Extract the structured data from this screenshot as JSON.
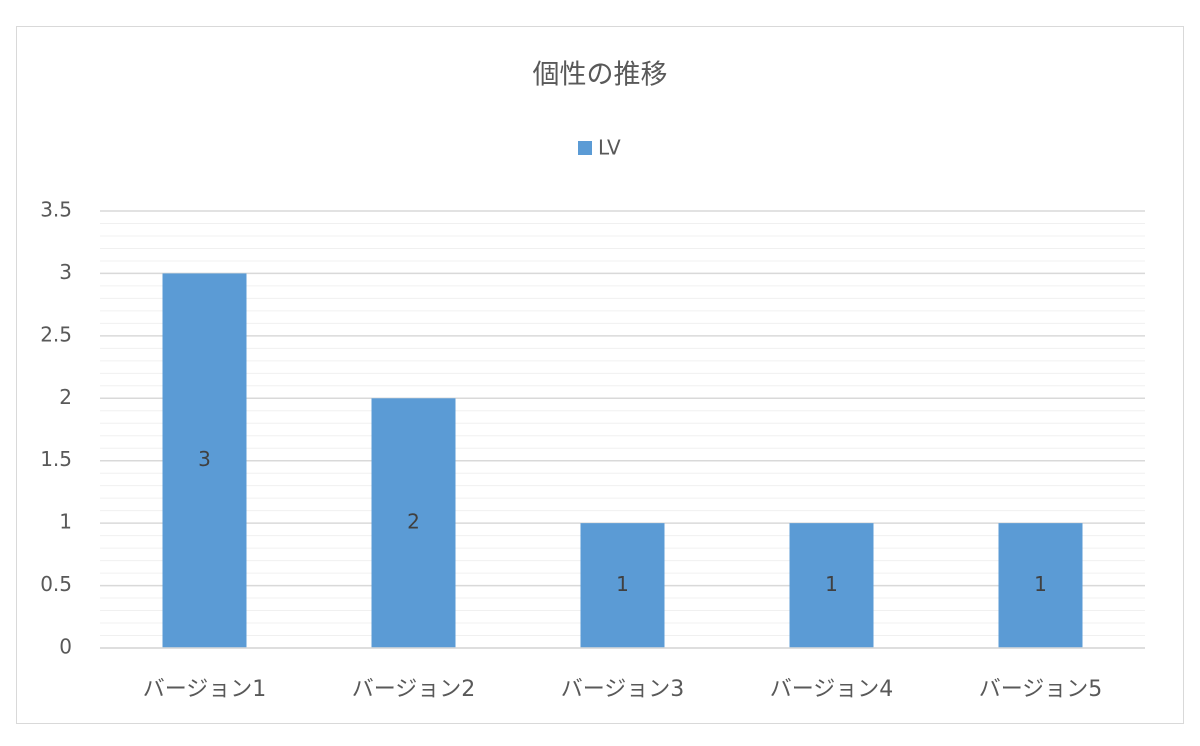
{
  "chart_data": {
    "type": "bar",
    "title": "個性の推移",
    "categories": [
      "バージョン1",
      "バージョン2",
      "バージョン3",
      "バージョン4",
      "バージョン5"
    ],
    "series": [
      {
        "name": "LV",
        "color": "#5b9bd5",
        "values": [
          3,
          2,
          1,
          1,
          1
        ]
      }
    ],
    "ylim": [
      0,
      3.5
    ],
    "yticks": [
      0,
      0.5,
      1,
      1.5,
      2,
      2.5,
      3,
      3.5
    ],
    "grid": true,
    "minor_grid": true,
    "legend": "top",
    "data_labels": true
  }
}
